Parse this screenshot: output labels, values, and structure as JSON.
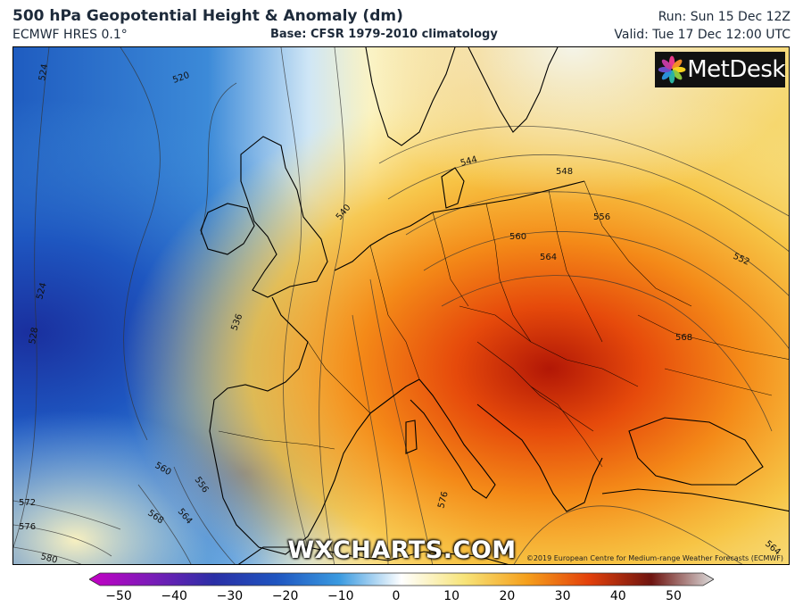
{
  "header": {
    "title": "500 hPa Geopotential Height & Anomaly (dm)",
    "model": "ECMWF HRES 0.1°",
    "base": "Base: CFSR 1979-2010 climatology",
    "run": "Run: Sun 15 Dec 12Z",
    "valid": "Valid: Tue 17 Dec 12:00 UTC"
  },
  "logo": {
    "text": "MetDesk"
  },
  "watermark": "WXCHARTS.COM",
  "copyright": "©2019 European Centre for Medium-range Weather Forecasts (ECMWF)",
  "contour_labels": [
    "524",
    "520",
    "544",
    "540",
    "548",
    "556",
    "560",
    "552",
    "564",
    "524",
    "528",
    "536",
    "568",
    "560",
    "556",
    "564",
    "568",
    "572",
    "576",
    "580",
    "576",
    "564"
  ],
  "colorbar": {
    "ticks": [
      "−50",
      "−40",
      "−30",
      "−20",
      "−10",
      "0",
      "10",
      "20",
      "30",
      "40",
      "50"
    ],
    "colors": [
      "#c400c4",
      "#5a1fa8",
      "#1f3fb3",
      "#1e78d4",
      "#8fc4ea",
      "#ffffff",
      "#f7e27a",
      "#f7a21c",
      "#e0400a",
      "#6b0f0a",
      "#e8e8e8"
    ]
  }
}
